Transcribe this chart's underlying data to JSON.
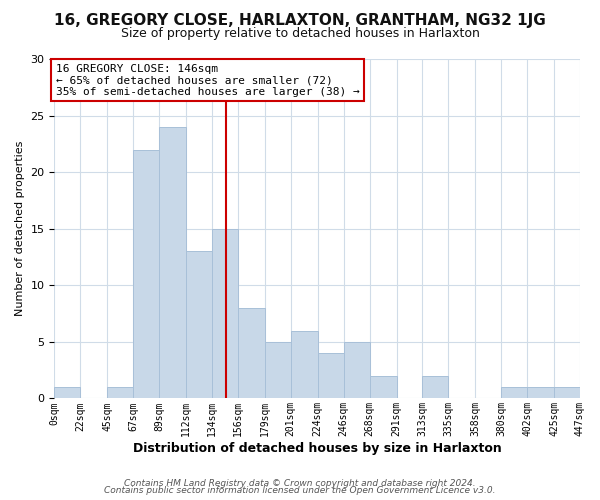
{
  "title_line1": "16, GREGORY CLOSE, HARLAXTON, GRANTHAM, NG32 1JG",
  "title_line2": "Size of property relative to detached houses in Harlaxton",
  "xlabel": "Distribution of detached houses by size in Harlaxton",
  "ylabel": "Number of detached properties",
  "bar_color": "#c8d8e8",
  "bar_edgecolor": "#a8c0d8",
  "reference_line_x": 146,
  "reference_line_color": "#cc0000",
  "bin_edges": [
    0,
    22,
    45,
    67,
    89,
    112,
    134,
    156,
    179,
    201,
    224,
    246,
    268,
    291,
    313,
    335,
    358,
    380,
    402,
    425,
    447
  ],
  "bin_labels": [
    "0sqm",
    "22sqm",
    "45sqm",
    "67sqm",
    "89sqm",
    "112sqm",
    "134sqm",
    "156sqm",
    "179sqm",
    "201sqm",
    "224sqm",
    "246sqm",
    "268sqm",
    "291sqm",
    "313sqm",
    "335sqm",
    "358sqm",
    "380sqm",
    "402sqm",
    "425sqm",
    "447sqm"
  ],
  "counts": [
    1,
    0,
    1,
    22,
    24,
    13,
    15,
    8,
    5,
    6,
    4,
    5,
    2,
    0,
    2,
    0,
    0,
    1,
    1,
    1
  ],
  "ylim": [
    0,
    30
  ],
  "yticks": [
    0,
    5,
    10,
    15,
    20,
    25,
    30
  ],
  "annotation_title": "16 GREGORY CLOSE: 146sqm",
  "annotation_line1": "← 65% of detached houses are smaller (72)",
  "annotation_line2": "35% of semi-detached houses are larger (38) →",
  "footer_line1": "Contains HM Land Registry data © Crown copyright and database right 2024.",
  "footer_line2": "Contains public sector information licensed under the Open Government Licence v3.0.",
  "grid_color": "#d0dce8",
  "background_color": "#ffffff",
  "ann_box_edgecolor": "#cc0000",
  "title_fontsize": 11,
  "subtitle_fontsize": 9,
  "xlabel_fontsize": 9,
  "ylabel_fontsize": 8,
  "xtick_fontsize": 7,
  "ytick_fontsize": 8,
  "ann_fontsize": 8,
  "footer_fontsize": 6.5
}
